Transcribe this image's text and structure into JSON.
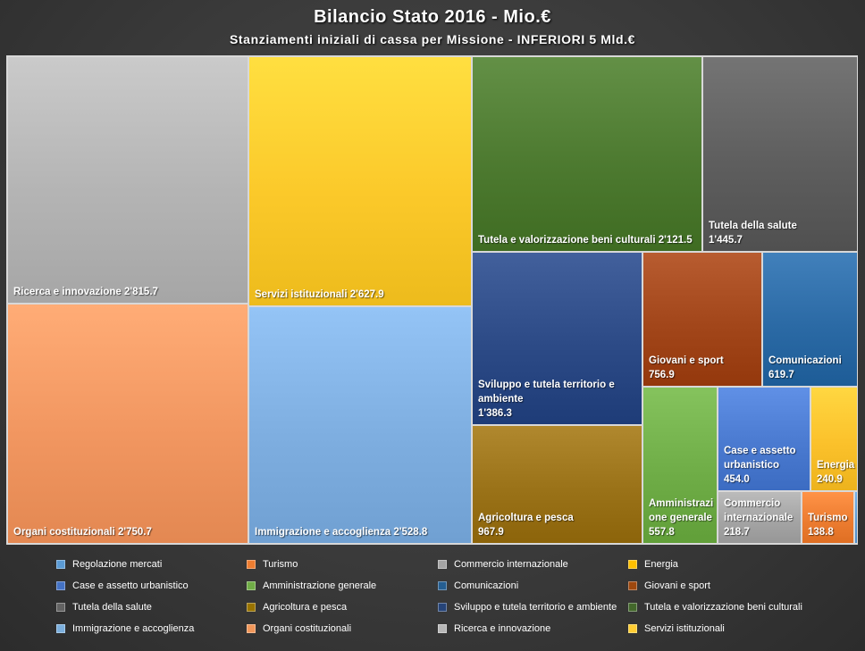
{
  "title": "Bilancio  Stato  2016 - Mio.€",
  "subtitle": "Stanziamenti  iniziali  di  cassa  per  Missione  -  INFERIORI  5  Mld.€",
  "chart_data": {
    "type": "treemap",
    "unit": "Mio.€",
    "items": [
      {
        "id": "ricerca",
        "name": "Ricerca e innovazione",
        "label": "Ricerca  e innovazione",
        "value_label": "2'815.7",
        "value": 2815.7,
        "color": "#b4b4b4"
      },
      {
        "id": "organi",
        "name": "Organi costituzionali",
        "label": "Organi costituzionali",
        "value_label": "2'750.7",
        "value": 2750.7,
        "color": "#f19660"
      },
      {
        "id": "servizi",
        "name": "Servizi istituzionali",
        "label": "Servizi istituzionali",
        "value_label": "2'627.9",
        "value": 2627.9,
        "color": "#fbc92a"
      },
      {
        "id": "immigrazione",
        "name": "Immigrazione e accoglienza",
        "label": "Immigrazione  e accoglienza",
        "value_label": "2'528.8",
        "value": 2528.8,
        "color": "#7eaee0"
      },
      {
        "id": "tutela_beni",
        "name": "Tutela e valorizzazione beni culturali",
        "label": "Tutela  e valorizzazione  beni culturali",
        "value_label": "2'121.5",
        "value": 2121.5,
        "color": "#4d7a30"
      },
      {
        "id": "salute",
        "name": "Tutela della salute",
        "label": "Tutela della salute",
        "value_label": "1'445.7",
        "value": 1445.7,
        "color": "#5e5e5e"
      },
      {
        "id": "sviluppo",
        "name": "Sviluppo e tutela territorio e ambiente",
        "label": "Sviluppo  e tutela territorio e ambiente",
        "value_label": "1'386.3",
        "value": 1386.3,
        "color": "#2c4a86"
      },
      {
        "id": "agricoltura",
        "name": "Agricoltura e pesca",
        "label": "Agricoltura  e pesca",
        "value_label": "967.9",
        "value": 967.9,
        "color": "#9a7218"
      },
      {
        "id": "giovani",
        "name": "Giovani e sport",
        "label": "Giovani  e sport",
        "value_label": "756.9",
        "value": 756.9,
        "color": "#a2461a"
      },
      {
        "id": "comunicazioni",
        "name": "Comunicazioni",
        "label": "Comunicazioni",
        "value_label": "619.7",
        "value": 619.7,
        "color": "#2b6aa5"
      },
      {
        "id": "amministrazione",
        "name": "Amministrazione generale",
        "label": "Amministrazi one generale",
        "value_label": "557.8",
        "value": 557.8,
        "color": "#6fad47"
      },
      {
        "id": "case",
        "name": "Case e assetto urbanistico",
        "label": "Case  e assetto urbanistico",
        "value_label": "454.0",
        "value": 454.0,
        "color": "#4a7ad0"
      },
      {
        "id": "energia",
        "name": "Energia",
        "label": "Energia",
        "value_label": "240.9",
        "value": 240.9,
        "color": "#fbc12b"
      },
      {
        "id": "commercio",
        "name": "Commercio internazionale",
        "label": "Commercio internazionale",
        "value_label": "218.7",
        "value": 218.7,
        "color": "#a5a5a5"
      },
      {
        "id": "turismo",
        "name": "Turismo",
        "label": "Turismo",
        "value_label": "138.8",
        "value": 138.8,
        "color": "#ed7d31"
      },
      {
        "id": "regolazione",
        "name": "Regolazione mercati",
        "label": "",
        "value_label": "",
        "value": null,
        "color": "#5b9bd5"
      }
    ],
    "legend": [
      {
        "name": "Regolazione mercati",
        "color": "#5b9bd5"
      },
      {
        "name": "Turismo",
        "color": "#ed7d31"
      },
      {
        "name": "Commercio internazionale",
        "color": "#a5a5a5"
      },
      {
        "name": "Energia",
        "color": "#ffc000"
      },
      {
        "name": "Case e assetto urbanistico",
        "color": "#4472c4"
      },
      {
        "name": "Amministrazione generale",
        "color": "#70ad47"
      },
      {
        "name": "Comunicazioni",
        "color": "#255e91"
      },
      {
        "name": "Giovani e sport",
        "color": "#9e480e"
      },
      {
        "name": "Tutela della salute",
        "color": "#636363"
      },
      {
        "name": "Agricoltura e pesca",
        "color": "#997300"
      },
      {
        "name": "Sviluppo e tutela territorio e ambiente",
        "color": "#264478"
      },
      {
        "name": "Tutela e valorizzazione beni culturali",
        "color": "#43682b"
      },
      {
        "name": "Immigrazione e accoglienza",
        "color": "#7cafdd"
      },
      {
        "name": "Organi costituzionali",
        "color": "#f1975a"
      },
      {
        "name": "Ricerca e innovazione",
        "color": "#b7b7b7"
      },
      {
        "name": "Servizi istituzionali",
        "color": "#ffcd33"
      }
    ],
    "legend_placement": "bottom"
  }
}
